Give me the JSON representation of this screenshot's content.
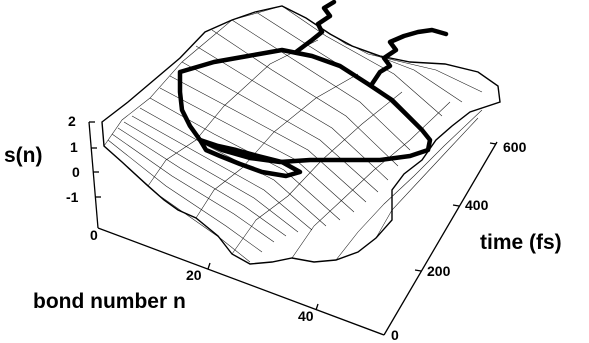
{
  "chart_data": {
    "type": "surface",
    "title": "",
    "zlabel": "s(n)",
    "xlabel": "bond number n",
    "ylabel": "time (fs)",
    "x_ticks": [
      "0",
      "20",
      "40"
    ],
    "y_ticks": [
      "0",
      "200",
      "400",
      "600"
    ],
    "z_ticks": [
      "2",
      "1",
      "0",
      "-1"
    ],
    "xlim": [
      0,
      50
    ],
    "ylim": [
      0,
      650
    ],
    "zlim": [
      -1.5,
      2
    ],
    "grid": false,
    "legend": "none",
    "series": [
      {
        "type": "mesh",
        "values_note": ""
      },
      {
        "type": "path",
        "values_note": ""
      }
    ],
    "colors": {
      "surface_face": "#ffffff",
      "mesh_line": "#000000",
      "path": "#000000"
    }
  }
}
